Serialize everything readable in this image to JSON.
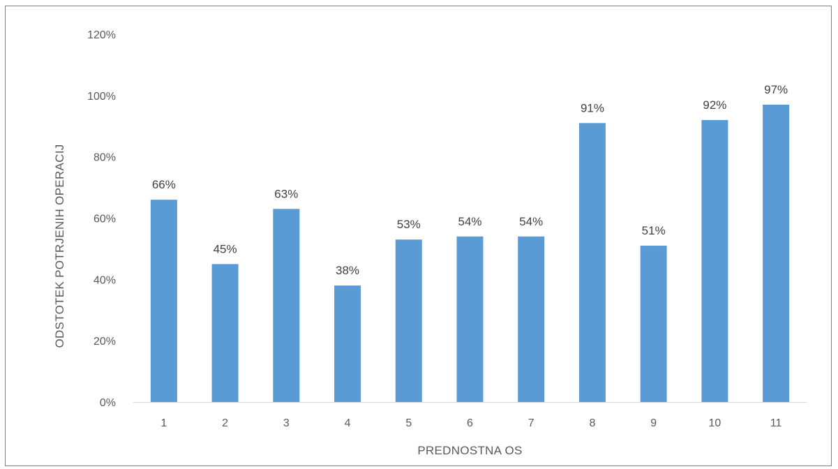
{
  "chart_data": {
    "type": "bar",
    "categories": [
      "1",
      "2",
      "3",
      "4",
      "5",
      "6",
      "7",
      "8",
      "9",
      "10",
      "11"
    ],
    "values": [
      66,
      45,
      63,
      38,
      53,
      54,
      54,
      91,
      51,
      92,
      97
    ],
    "data_labels": [
      "66%",
      "45%",
      "63%",
      "38%",
      "53%",
      "54%",
      "54%",
      "91%",
      "51%",
      "92%",
      "97%"
    ],
    "y_ticks": [
      0,
      20,
      40,
      60,
      80,
      100,
      120
    ],
    "y_tick_labels": [
      "0%",
      "20%",
      "40%",
      "60%",
      "80%",
      "100%",
      "120%"
    ],
    "ylim": [
      0,
      120
    ],
    "unit": "%",
    "xlabel": "PREDNOSTNA OS",
    "ylabel": "ODSTOTEK POTRJENIH OPERACIJ",
    "title": "",
    "grid": false,
    "legend": "none",
    "bar_color": "#5B9BD5",
    "axis_color": "#D9D9D9",
    "text_color": "#595959"
  }
}
